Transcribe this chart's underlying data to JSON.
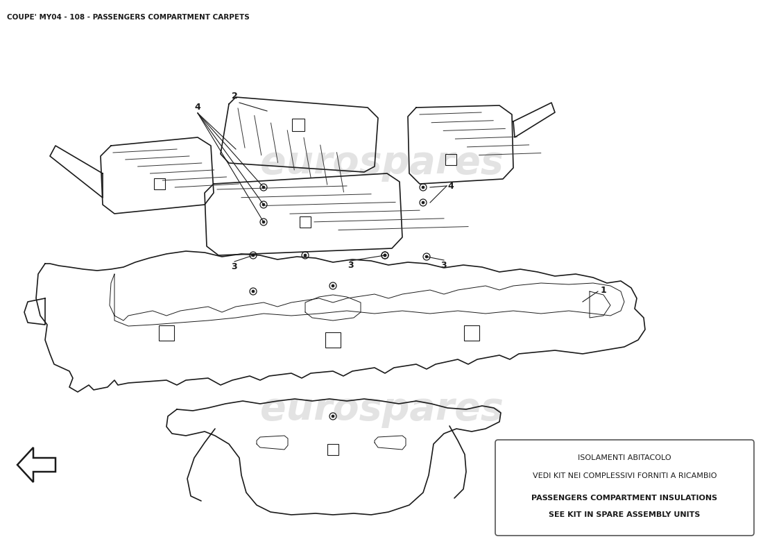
{
  "title": "COUPE' MY04 - 108 - PASSENGERS COMPARTMENT CARPETS",
  "title_fontsize": 7.5,
  "bg_color": "#ffffff",
  "diagram_color": "#1a1a1a",
  "watermark_text": "eurospares",
  "note_box_lines": [
    "ISOLAMENTI ABITACOLO",
    "VEDI KIT NEI COMPLESSIVI FORNITI A RICAMBIO",
    "PASSENGERS COMPARTMENT INSULATIONS",
    "SEE KIT IN SPARE ASSEMBLY UNITS"
  ]
}
